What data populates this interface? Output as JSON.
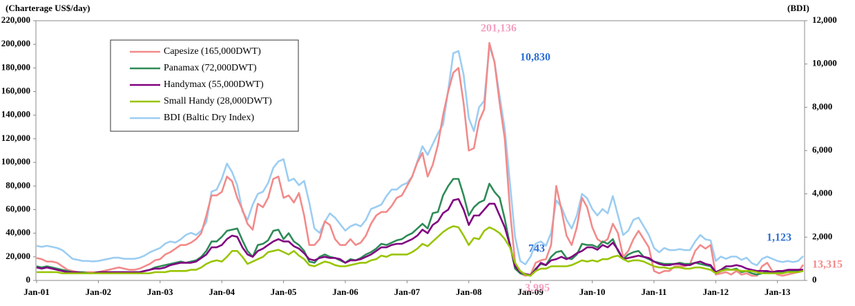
{
  "chart_data": {
    "type": "line",
    "y_label": "(Charterage  US$/day)",
    "y2_label": "(BDI)",
    "categories": [
      "Jan-01",
      null,
      null,
      null,
      null,
      null,
      null,
      null,
      null,
      null,
      null,
      null,
      "Jan-02",
      null,
      null,
      null,
      null,
      null,
      null,
      null,
      null,
      null,
      null,
      null,
      "Jan-03",
      null,
      null,
      null,
      null,
      null,
      null,
      null,
      null,
      null,
      null,
      null,
      "Jan-04",
      null,
      null,
      null,
      null,
      null,
      null,
      null,
      null,
      null,
      null,
      null,
      "Jan-05",
      null,
      null,
      null,
      null,
      null,
      null,
      null,
      null,
      null,
      null,
      null,
      "Jan-06",
      null,
      null,
      null,
      null,
      null,
      null,
      null,
      null,
      null,
      null,
      null,
      "Jan-07",
      null,
      null,
      null,
      null,
      null,
      null,
      null,
      null,
      null,
      null,
      null,
      "Jan-08",
      null,
      null,
      null,
      null,
      null,
      null,
      null,
      null,
      null,
      null,
      null,
      "Jan-09",
      null,
      null,
      null,
      null,
      null,
      null,
      null,
      null,
      null,
      null,
      null,
      "Jan-10",
      null,
      null,
      null,
      null,
      null,
      null,
      null,
      null,
      null,
      null,
      null,
      "Jan-11",
      null,
      null,
      null,
      null,
      null,
      null,
      null,
      null,
      null,
      null,
      null,
      "Jan-12",
      null,
      null,
      null,
      null,
      null,
      null,
      null,
      null,
      null,
      null,
      null,
      "Jan-13",
      null,
      null,
      null,
      null,
      null
    ],
    "series": [
      {
        "name": "Capesize (165,000DWT)",
        "color": "#f28a8a",
        "values": [
          19000,
          18000,
          16000,
          16000,
          15000,
          12000,
          9000,
          8000,
          7000,
          7000,
          7000,
          7000,
          7000,
          8000,
          9000,
          10000,
          11000,
          10000,
          9000,
          9000,
          10000,
          12000,
          14000,
          17000,
          18000,
          22000,
          24000,
          27000,
          30000,
          30000,
          32000,
          35000,
          40000,
          55000,
          72000,
          72000,
          75000,
          88000,
          84000,
          70000,
          60000,
          48000,
          43000,
          65000,
          62000,
          70000,
          86000,
          88000,
          70000,
          72000,
          66000,
          74000,
          55000,
          30000,
          30000,
          35000,
          50000,
          47000,
          35000,
          30000,
          30000,
          35000,
          30000,
          32000,
          38000,
          48000,
          55000,
          58000,
          58000,
          63000,
          70000,
          72000,
          80000,
          88000,
          100000,
          108000,
          88000,
          98000,
          115000,
          140000,
          160000,
          176000,
          180000,
          150000,
          110000,
          112000,
          135000,
          145000,
          201136,
          185000,
          150000,
          120000,
          60000,
          15000,
          6000,
          3995,
          5000,
          15000,
          17000,
          18000,
          30000,
          80000,
          60000,
          38000,
          30000,
          45000,
          70000,
          62000,
          45000,
          35000,
          32000,
          35000,
          48000,
          40000,
          20000,
          25000,
          35000,
          42000,
          35000,
          28000,
          8000,
          6000,
          8000,
          8000,
          12000,
          12000,
          12000,
          14000,
          25000,
          30000,
          27000,
          30000,
          5000,
          6000,
          7000,
          5000,
          8000,
          5000,
          6000,
          4000,
          4000,
          12000,
          15000,
          8000,
          5000,
          4000,
          5000,
          6000,
          7000,
          13315
        ]
      },
      {
        "name": "Panamax (72,000DWT)",
        "color": "#2e8b57",
        "values": [
          12000,
          11000,
          12000,
          11000,
          10000,
          9000,
          8000,
          7000,
          7000,
          7000,
          6000,
          6000,
          7000,
          7000,
          7000,
          7000,
          7000,
          7000,
          7000,
          7000,
          7000,
          8000,
          9000,
          11000,
          12000,
          13000,
          14000,
          15000,
          16000,
          15000,
          16000,
          17000,
          20000,
          25000,
          33000,
          33000,
          37000,
          42000,
          43000,
          44000,
          34000,
          25000,
          20000,
          30000,
          31000,
          34000,
          42000,
          43000,
          35000,
          40000,
          33000,
          30000,
          25000,
          16000,
          15000,
          20000,
          22000,
          20000,
          19000,
          17000,
          15000,
          18000,
          17000,
          19000,
          22000,
          24000,
          27000,
          31000,
          30000,
          32000,
          34000,
          35000,
          38000,
          40000,
          44000,
          48000,
          44000,
          57000,
          58000,
          72000,
          80000,
          86000,
          86000,
          72000,
          55000,
          62000,
          66000,
          68000,
          82000,
          75000,
          70000,
          52000,
          30000,
          10000,
          6000,
          5000,
          4000,
          10000,
          14000,
          13000,
          20000,
          24000,
          25000,
          19000,
          18000,
          22000,
          31000,
          30000,
          30000,
          28000,
          33000,
          31000,
          35000,
          25000,
          18000,
          22000,
          24000,
          25000,
          20000,
          18000,
          16000,
          15000,
          14000,
          14000,
          14000,
          15000,
          14000,
          14000,
          15000,
          14000,
          13000,
          12000,
          6000,
          8000,
          10000,
          9000,
          10000,
          7000,
          8000,
          6000,
          5000,
          6000,
          7000,
          6000,
          7000,
          7000,
          8000,
          8000,
          8000,
          9000
        ]
      },
      {
        "name": "Handymax (55,000DWT)",
        "color": "#800080",
        "values": [
          11000,
          10000,
          11000,
          10000,
          9000,
          8000,
          7000,
          7000,
          7000,
          6000,
          6000,
          6000,
          7000,
          7000,
          7000,
          7000,
          7000,
          7000,
          7000,
          7000,
          7000,
          8000,
          9000,
          10000,
          10000,
          11000,
          13000,
          14000,
          15000,
          15000,
          15000,
          16000,
          19000,
          22000,
          28000,
          28000,
          30000,
          35000,
          38000,
          37000,
          28000,
          22000,
          20000,
          25000,
          27000,
          30000,
          33000,
          35000,
          33000,
          33000,
          29000,
          27000,
          23000,
          18000,
          17000,
          19000,
          20000,
          19000,
          19000,
          18000,
          15000,
          17000,
          17000,
          18000,
          20000,
          22000,
          25000,
          28000,
          28000,
          30000,
          31000,
          31000,
          33000,
          35000,
          38000,
          43000,
          40000,
          47000,
          50000,
          57000,
          60000,
          68000,
          69000,
          60000,
          47000,
          55000,
          55000,
          60000,
          65000,
          65000,
          55000,
          45000,
          30000,
          12000,
          7000,
          5500,
          4500,
          9000,
          15000,
          13000,
          17000,
          18000,
          20000,
          18000,
          20000,
          23000,
          25000,
          28000,
          28000,
          26000,
          30000,
          28000,
          32000,
          26000,
          18000,
          19000,
          20000,
          21000,
          20000,
          19000,
          16000,
          14000,
          13000,
          13000,
          14000,
          14000,
          13000,
          13000,
          15000,
          16000,
          14000,
          13000,
          7000,
          9000,
          12000,
          12000,
          13000,
          12000,
          10000,
          9000,
          8000,
          8000,
          8000,
          7000,
          8000,
          8000,
          9000,
          9000,
          9000,
          9000
        ]
      },
      {
        "name": "Small Handy (28,000DWT)",
        "color": "#99c400",
        "values": [
          7000,
          7000,
          7000,
          7000,
          7000,
          6000,
          6000,
          6000,
          6000,
          6000,
          6000,
          6000,
          6000,
          6000,
          6000,
          6000,
          6000,
          6000,
          6000,
          6000,
          6000,
          6000,
          6000,
          7000,
          7000,
          7000,
          8000,
          8000,
          8000,
          8000,
          9000,
          9000,
          11000,
          14000,
          16000,
          17000,
          16000,
          20000,
          25000,
          25000,
          20000,
          14000,
          16000,
          18000,
          20000,
          24000,
          25000,
          26000,
          24000,
          22000,
          25000,
          21000,
          18000,
          13000,
          12000,
          14000,
          16000,
          15000,
          13000,
          12000,
          12000,
          13000,
          14000,
          15000,
          15000,
          17000,
          18000,
          21000,
          20000,
          22000,
          22000,
          22000,
          22000,
          24000,
          27000,
          31000,
          29000,
          33000,
          37000,
          41000,
          44000,
          46000,
          45000,
          38000,
          30000,
          36000,
          35000,
          42000,
          45000,
          43000,
          40000,
          35000,
          28000,
          15000,
          8000,
          5000,
          4000,
          8000,
          10000,
          10000,
          12000,
          12000,
          12000,
          12000,
          13000,
          15000,
          17000,
          16000,
          17000,
          16000,
          18000,
          18000,
          20000,
          21000,
          18000,
          16000,
          17000,
          17000,
          16000,
          14000,
          12000,
          11000,
          11000,
          10000,
          11000,
          11000,
          10000,
          10000,
          11000,
          11000,
          10000,
          9000,
          6000,
          8000,
          9000,
          9000,
          9000,
          8000,
          8000,
          8000,
          7000,
          6000,
          6000,
          6000,
          6000,
          6000,
          7000,
          7000,
          7000,
          8000
        ]
      },
      {
        "name": "BDI (Baltic Dry Index)",
        "color": "#9ccdf2",
        "axis": "y2",
        "values": [
          1600,
          1550,
          1600,
          1550,
          1500,
          1400,
          1200,
          1000,
          950,
          900,
          900,
          880,
          900,
          950,
          1000,
          1050,
          1050,
          1000,
          1000,
          1000,
          1050,
          1150,
          1300,
          1400,
          1500,
          1700,
          1800,
          1750,
          1900,
          2100,
          2200,
          2100,
          2300,
          2700,
          4100,
          4200,
          4700,
          5400,
          5000,
          4400,
          3200,
          2800,
          3500,
          4000,
          4100,
          4500,
          5200,
          5500,
          5600,
          4600,
          4700,
          4400,
          4600,
          3600,
          2400,
          2200,
          2700,
          3100,
          2900,
          2600,
          2300,
          2500,
          2600,
          2500,
          2800,
          3300,
          3400,
          3500,
          3900,
          4200,
          4200,
          4400,
          4500,
          4800,
          5500,
          6200,
          5800,
          6300,
          6800,
          7200,
          8800,
          10500,
          10600,
          9500,
          7500,
          6900,
          8000,
          8300,
          10830,
          10100,
          8500,
          7000,
          4500,
          2000,
          900,
          743,
          1100,
          1700,
          1800,
          1600,
          2200,
          3700,
          3400,
          2800,
          2400,
          3000,
          4000,
          3800,
          3300,
          3000,
          3300,
          3100,
          3900,
          3000,
          2100,
          2300,
          2800,
          2900,
          2500,
          2100,
          1500,
          1300,
          1500,
          1400,
          1400,
          1450,
          1400,
          1400,
          1800,
          2100,
          1900,
          1850,
          900,
          1100,
          1000,
          1100,
          1100,
          950,
          1050,
          800,
          700,
          1000,
          1100,
          1000,
          900,
          850,
          900,
          850,
          900,
          1123
        ]
      }
    ],
    "annotations": [
      {
        "text": "201,136",
        "color": "#f4a0c0"
      },
      {
        "text": "10,830",
        "color": "#2b6fd6"
      },
      {
        "text": "743",
        "color": "#2b6fd6"
      },
      {
        "text": "3,995",
        "color": "#f4a0c0"
      },
      {
        "text": "1,123",
        "color": "#2b6fd6"
      },
      {
        "text": "13,315",
        "color": "#f28a8a"
      }
    ],
    "ylim": [
      0,
      220000
    ],
    "yticks": [
      0,
      {
        "value": 20000,
        "label": "20,000"
      },
      {
        "value": 40000,
        "label": "40,000"
      },
      {
        "value": 60000,
        "label": "60,000"
      },
      {
        "value": 80000,
        "label": "80,000"
      },
      {
        "value": 100000,
        "label": "100,000"
      },
      {
        "value": 120000,
        "label": "120,000"
      },
      {
        "value": 140000,
        "label": "140,000"
      },
      {
        "value": 160000,
        "label": "160,000"
      },
      {
        "value": 180000,
        "label": "180,000"
      },
      {
        "value": 200000,
        "label": "200,000"
      },
      {
        "value": 220000,
        "label": "220,000"
      }
    ],
    "y2lim": [
      0,
      12000
    ],
    "y2ticks": [
      0,
      {
        "value": 2000,
        "label": "2,000"
      },
      {
        "value": 4000,
        "label": "4,000"
      },
      {
        "value": 6000,
        "label": "6,000"
      },
      {
        "value": 8000,
        "label": "8,000"
      },
      {
        "value": 10000,
        "label": "10,000"
      },
      {
        "value": 12000,
        "label": "12,000"
      }
    ]
  }
}
